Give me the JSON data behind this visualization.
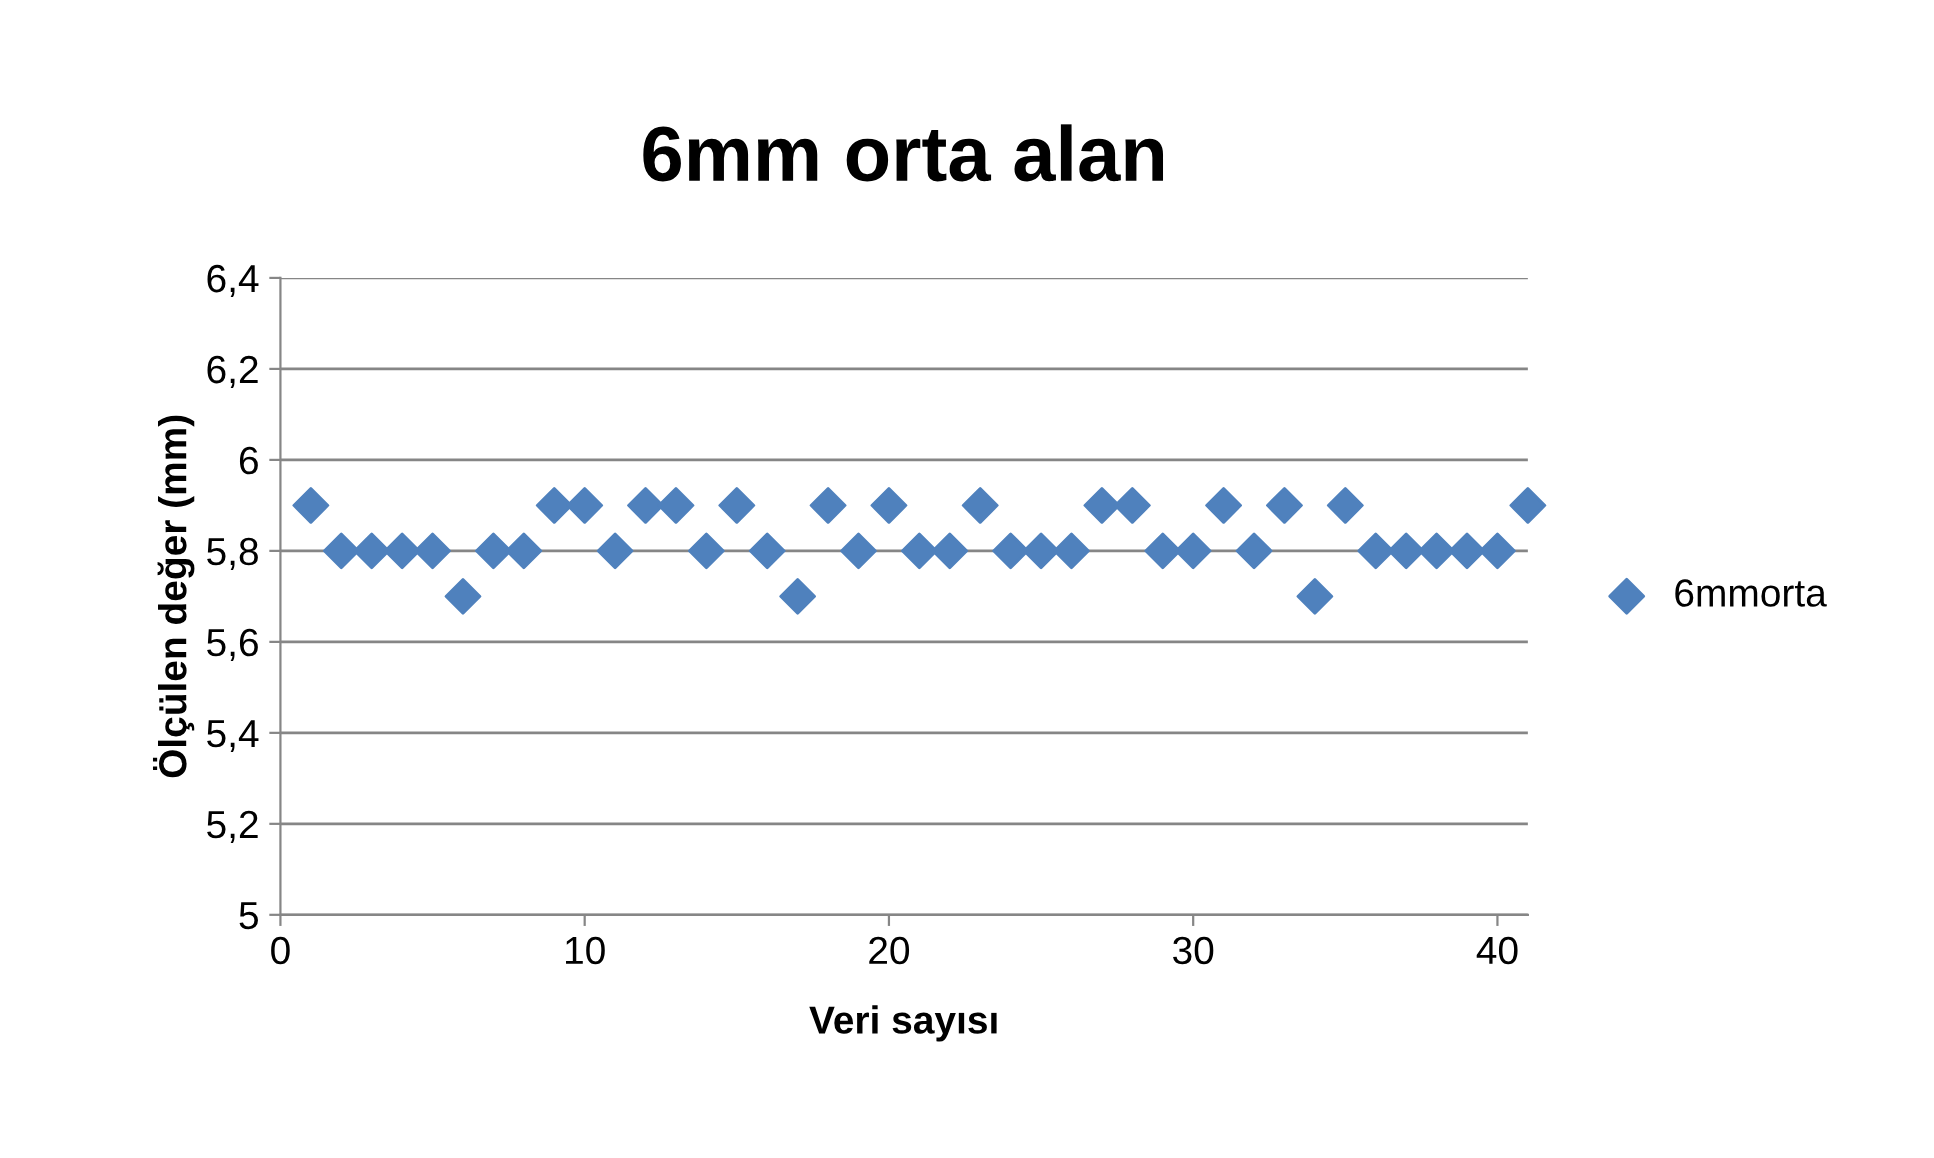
{
  "chart_data": {
    "type": "scatter",
    "title": "6mm orta alan",
    "xlabel": "Veri sayısı",
    "ylabel": "Ölçülen değer (mm)",
    "series": [
      {
        "name": "6mmorta",
        "color": "#4f81bd",
        "x": [
          1,
          2,
          3,
          4,
          5,
          6,
          7,
          8,
          9,
          10,
          11,
          12,
          13,
          14,
          15,
          16,
          17,
          18,
          19,
          20,
          21,
          22,
          23,
          24,
          25,
          26,
          27,
          28,
          29,
          30,
          31,
          32,
          33,
          34,
          35,
          36,
          37,
          38,
          39,
          40,
          41
        ],
        "values": [
          5.9,
          5.8,
          5.8,
          5.8,
          5.8,
          5.7,
          5.8,
          5.8,
          5.9,
          5.9,
          5.8,
          5.9,
          5.9,
          5.8,
          5.9,
          5.8,
          5.7,
          5.9,
          5.8,
          5.9,
          5.8,
          5.8,
          5.9,
          5.8,
          5.8,
          5.8,
          5.9,
          5.9,
          5.8,
          5.8,
          5.9,
          5.8,
          5.9,
          5.7,
          5.9,
          5.8,
          5.8,
          5.8,
          5.8,
          5.8,
          5.9
        ]
      }
    ],
    "xlim": [
      0,
      41
    ],
    "xticks": [
      0,
      10,
      20,
      30,
      40
    ],
    "ylim": [
      5,
      6.4
    ],
    "yticks": [
      {
        "value": 5,
        "label": "5"
      },
      {
        "value": 5.2,
        "label": "5,2"
      },
      {
        "value": 5.4,
        "label": "5,4"
      },
      {
        "value": 5.6,
        "label": "5,6"
      },
      {
        "value": 5.8,
        "label": "5,8"
      },
      {
        "value": 6,
        "label": "6"
      },
      {
        "value": 6.2,
        "label": "6,2"
      },
      {
        "value": 6.4,
        "label": "6,4"
      }
    ],
    "grid": "y",
    "legend": "right",
    "marker": "diamond"
  }
}
